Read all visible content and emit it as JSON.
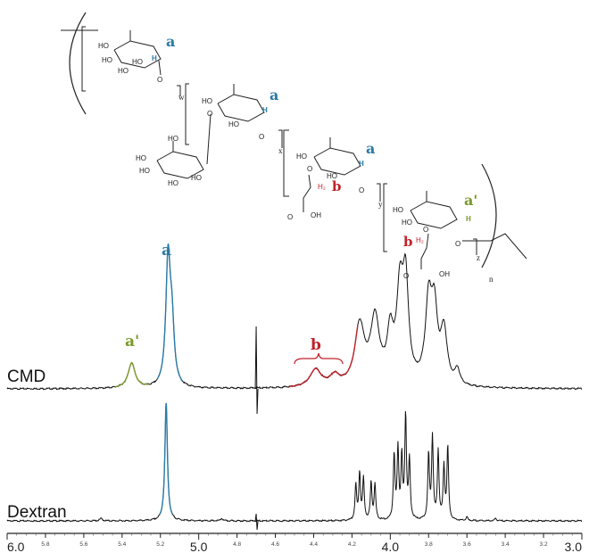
{
  "colors": {
    "ink": "#111111",
    "peak_a": "#2a7ba6",
    "peak_a_prime": "#7a9a2c",
    "peak_b": "#c0222a"
  },
  "structure": {
    "glycan_label": "a",
    "glycan_label_prime": "a'",
    "ch2_label": "b",
    "ch2_text": "H₂",
    "ring_atoms": {
      "oh": "HO",
      "h": "H",
      "o": "O",
      "oh_right": "OH"
    },
    "repeat_units": {
      "w": "w",
      "x": "x",
      "y": "y",
      "z": "z",
      "n": "n"
    }
  },
  "chart_data": {
    "type": "line",
    "xlabel": "",
    "ylabel": "",
    "xlim": [
      6.0,
      3.0
    ],
    "x_reversed": true,
    "major_ticks": [
      {
        "value": 6.0,
        "label": "6.0"
      },
      {
        "value": 5.0,
        "label": "5.0"
      },
      {
        "value": 4.0,
        "label": "4.0"
      },
      {
        "value": 3.0,
        "label": "3.0"
      }
    ],
    "minor_ticks": [
      {
        "value": 5.8,
        "label": "5.8"
      },
      {
        "value": 5.6,
        "label": "5.6"
      },
      {
        "value": 5.4,
        "label": "5.4"
      },
      {
        "value": 5.2,
        "label": "5.2"
      },
      {
        "value": 4.8,
        "label": "4.8"
      },
      {
        "value": 4.6,
        "label": "4.6"
      },
      {
        "value": 4.4,
        "label": "4.4"
      },
      {
        "value": 4.2,
        "label": "4.2"
      },
      {
        "value": 3.8,
        "label": "3.8"
      },
      {
        "value": 3.6,
        "label": "3.6"
      },
      {
        "value": 3.4,
        "label": "3.4"
      },
      {
        "value": 3.2,
        "label": "3.2"
      }
    ],
    "series": [
      {
        "name": "CMD",
        "peaks": [
          {
            "ppm": 5.35,
            "height": 0.2,
            "width": 0.022,
            "label": "a'",
            "color": "#7a9a2c"
          },
          {
            "ppm": 5.16,
            "height": 1.0,
            "width": 0.014,
            "label": "a",
            "color": "#2a7ba6"
          },
          {
            "ppm": 5.14,
            "height": 0.45,
            "width": 0.014,
            "label": "",
            "color": "#2a7ba6"
          },
          {
            "ppm": 4.39,
            "height": 0.14,
            "width": 0.035,
            "label": "b",
            "color": "#c0222a"
          },
          {
            "ppm": 4.29,
            "height": 0.08,
            "width": 0.03,
            "label": "",
            "color": "#c0222a"
          },
          {
            "ppm": 4.16,
            "height": 0.48,
            "width": 0.03,
            "label": "",
            "color": "#111111"
          },
          {
            "ppm": 4.08,
            "height": 0.52,
            "width": 0.028,
            "label": "",
            "color": "#111111"
          },
          {
            "ppm": 4.0,
            "height": 0.38,
            "width": 0.02,
            "label": "",
            "color": "#111111"
          },
          {
            "ppm": 3.95,
            "height": 0.7,
            "width": 0.02,
            "label": "",
            "color": "#111111"
          },
          {
            "ppm": 3.92,
            "height": 0.78,
            "width": 0.018,
            "label": "",
            "color": "#111111"
          },
          {
            "ppm": 3.8,
            "height": 0.62,
            "width": 0.02,
            "label": "",
            "color": "#111111"
          },
          {
            "ppm": 3.77,
            "height": 0.55,
            "width": 0.02,
            "label": "",
            "color": "#111111"
          },
          {
            "ppm": 3.72,
            "height": 0.42,
            "width": 0.02,
            "label": "",
            "color": "#111111"
          },
          {
            "ppm": 3.65,
            "height": 0.12,
            "width": 0.015,
            "label": "",
            "color": "#111111"
          }
        ],
        "artifact_ppm": 4.7
      },
      {
        "name": "Dextran",
        "peaks": [
          {
            "ppm": 5.17,
            "height": 1.0,
            "width": 0.008,
            "label": "",
            "color": "#2a7ba6"
          },
          {
            "ppm": 5.51,
            "height": 0.02,
            "width": 0.008,
            "label": "",
            "color": "#111111"
          },
          {
            "ppm": 4.88,
            "height": 0.02,
            "width": 0.006,
            "label": "",
            "color": "#111111"
          },
          {
            "ppm": 4.18,
            "height": 0.3,
            "width": 0.005,
            "label": "",
            "color": "#111111"
          },
          {
            "ppm": 4.16,
            "height": 0.4,
            "width": 0.005,
            "label": "",
            "color": "#111111"
          },
          {
            "ppm": 4.14,
            "height": 0.35,
            "width": 0.005,
            "label": "",
            "color": "#111111"
          },
          {
            "ppm": 4.1,
            "height": 0.32,
            "width": 0.005,
            "label": "",
            "color": "#111111"
          },
          {
            "ppm": 4.08,
            "height": 0.3,
            "width": 0.005,
            "label": "",
            "color": "#111111"
          },
          {
            "ppm": 3.98,
            "height": 0.55,
            "width": 0.005,
            "label": "",
            "color": "#111111"
          },
          {
            "ppm": 3.96,
            "height": 0.6,
            "width": 0.005,
            "label": "",
            "color": "#111111"
          },
          {
            "ppm": 3.94,
            "height": 0.52,
            "width": 0.005,
            "label": "",
            "color": "#111111"
          },
          {
            "ppm": 3.92,
            "height": 0.88,
            "width": 0.005,
            "label": "",
            "color": "#111111"
          },
          {
            "ppm": 3.9,
            "height": 0.5,
            "width": 0.005,
            "label": "",
            "color": "#111111"
          },
          {
            "ppm": 3.8,
            "height": 0.55,
            "width": 0.005,
            "label": "",
            "color": "#111111"
          },
          {
            "ppm": 3.78,
            "height": 0.7,
            "width": 0.005,
            "label": "",
            "color": "#111111"
          },
          {
            "ppm": 3.75,
            "height": 0.58,
            "width": 0.005,
            "label": "",
            "color": "#111111"
          },
          {
            "ppm": 3.72,
            "height": 0.45,
            "width": 0.005,
            "label": "",
            "color": "#111111"
          },
          {
            "ppm": 3.7,
            "height": 0.62,
            "width": 0.005,
            "label": "",
            "color": "#111111"
          },
          {
            "ppm": 3.6,
            "height": 0.03,
            "width": 0.005,
            "label": "",
            "color": "#111111"
          },
          {
            "ppm": 3.45,
            "height": 0.02,
            "width": 0.005,
            "label": "",
            "color": "#111111"
          }
        ],
        "artifact_ppm": 4.7
      }
    ]
  }
}
